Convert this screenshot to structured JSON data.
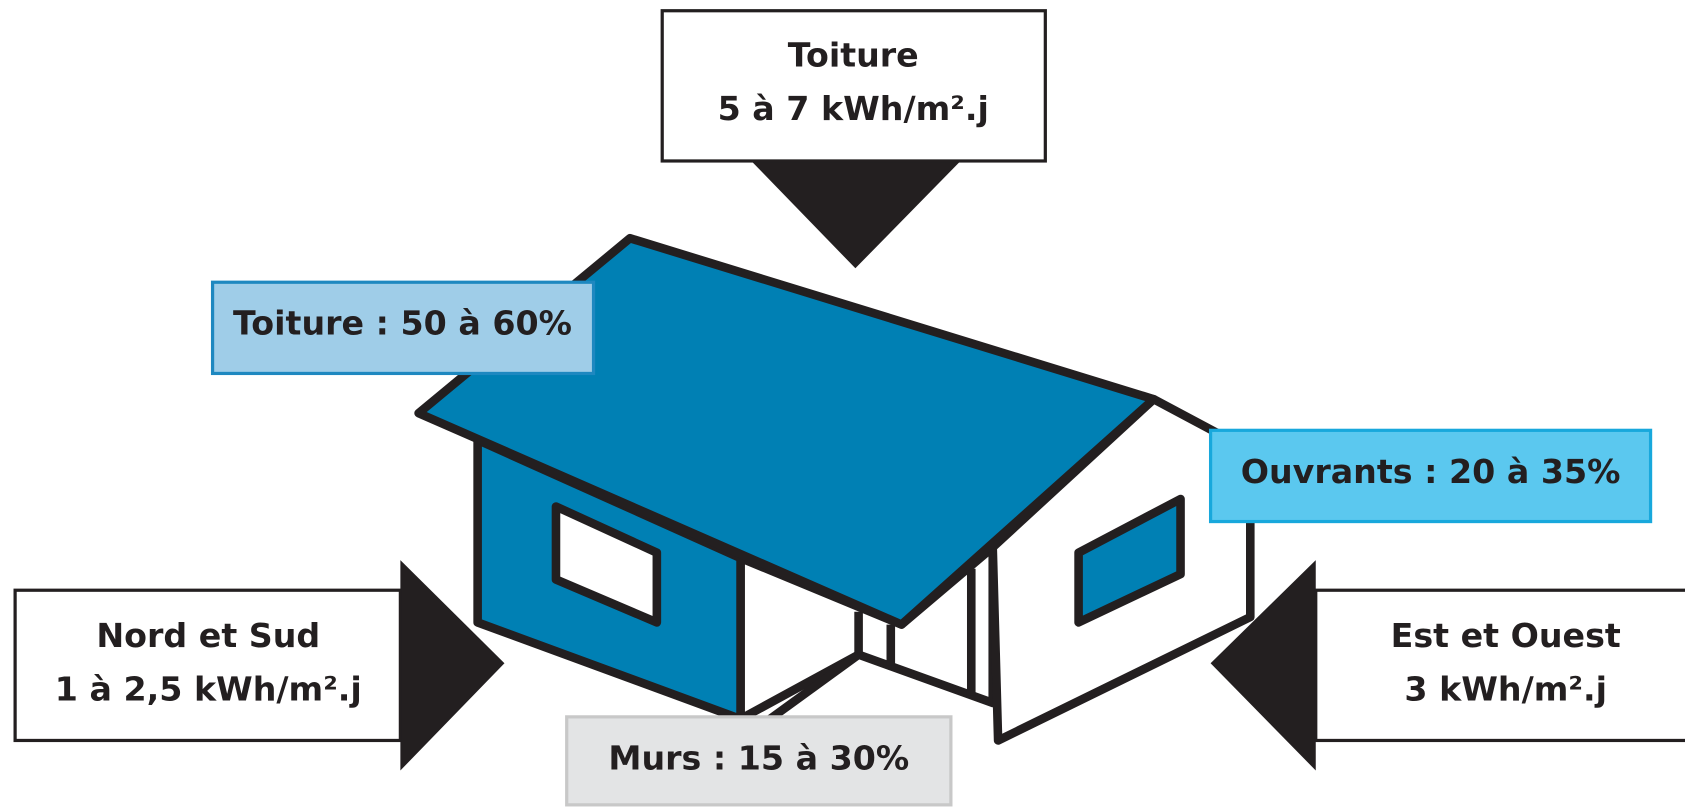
{
  "callouts": {
    "top": {
      "title": "Toiture",
      "value": "5 à 7 kWh/m².j"
    },
    "left": {
      "title": "Nord et Sud",
      "value": "1 à 2,5 kWh/m².j"
    },
    "right": {
      "title": "Est et Ouest",
      "value": "3 kWh/m².j"
    }
  },
  "losses": {
    "roof": "Toiture : 50 à 60%",
    "openings": "Ouvrants : 20 à 35%",
    "walls": "Murs : 15 à 30%"
  }
}
